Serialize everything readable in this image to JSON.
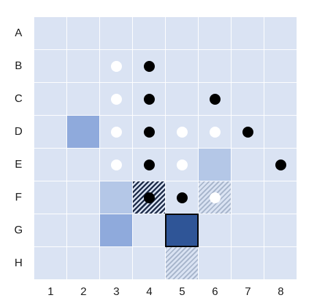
{
  "board": {
    "rows": [
      "A",
      "B",
      "C",
      "D",
      "E",
      "F",
      "G",
      "H"
    ],
    "cols": [
      "1",
      "2",
      "3",
      "4",
      "5",
      "6",
      "7",
      "8"
    ],
    "colors": {
      "base": "#dae3f3",
      "grid_line": "#ffffff",
      "light": "#b4c7e7",
      "medium": "#8faadc",
      "dark": "#2f5597",
      "black_stone": "#000000",
      "white_stone": "#ffffff"
    },
    "highlighted_cells": [
      {
        "cell": "D2",
        "style": "medium"
      },
      {
        "cell": "E6",
        "style": "light"
      },
      {
        "cell": "F3",
        "style": "light"
      },
      {
        "cell": "G3",
        "style": "medium"
      },
      {
        "cell": "F4",
        "style": "hatch-dark"
      },
      {
        "cell": "F6",
        "style": "hatch-light"
      },
      {
        "cell": "H5",
        "style": "hatch-light"
      },
      {
        "cell": "G5",
        "style": "dark-outlined"
      }
    ],
    "stones": [
      {
        "cell": "B3",
        "color": "white"
      },
      {
        "cell": "B4",
        "color": "black"
      },
      {
        "cell": "C3",
        "color": "white"
      },
      {
        "cell": "C4",
        "color": "black"
      },
      {
        "cell": "C6",
        "color": "black"
      },
      {
        "cell": "D3",
        "color": "white"
      },
      {
        "cell": "D4",
        "color": "black"
      },
      {
        "cell": "D5",
        "color": "white"
      },
      {
        "cell": "D6",
        "color": "white"
      },
      {
        "cell": "D7",
        "color": "black"
      },
      {
        "cell": "E3",
        "color": "white"
      },
      {
        "cell": "E4",
        "color": "black"
      },
      {
        "cell": "E5",
        "color": "white"
      },
      {
        "cell": "E8",
        "color": "black"
      },
      {
        "cell": "F4",
        "color": "black"
      },
      {
        "cell": "F5",
        "color": "black"
      },
      {
        "cell": "F6",
        "color": "white"
      }
    ]
  }
}
